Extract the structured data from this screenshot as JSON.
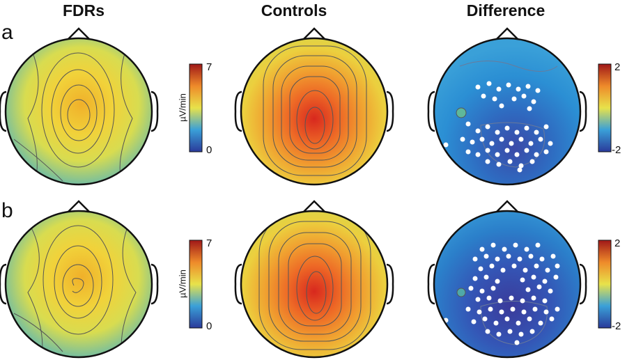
{
  "columns": [
    "FDRs",
    "Controls",
    "Difference"
  ],
  "rows": [
    "a",
    "b"
  ],
  "colorbars": {
    "power": {
      "max": "7",
      "min": "0",
      "unit": "µV/min"
    },
    "diff": {
      "max": "2",
      "min": "-2"
    }
  },
  "colors": {
    "low": "#2a3a9a",
    "mid_low": "#3aa0d8",
    "mid": "#e8e24a",
    "high": "#e84a1a",
    "max": "#a01818",
    "sig_dot": "#ffffff"
  }
}
